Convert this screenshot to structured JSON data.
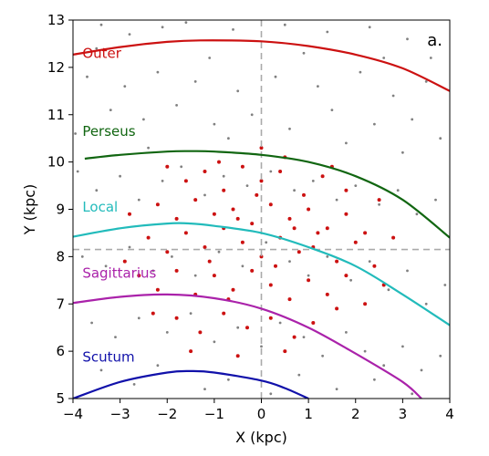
{
  "chart_data": {
    "type": "scatter",
    "title": "",
    "panel_label": "a.",
    "xlabel": "X (kpc)",
    "ylabel": "Y (kpc)",
    "xlim": [
      -4,
      4
    ],
    "ylim": [
      5,
      13
    ],
    "xticks": [
      -4,
      -3,
      -2,
      -1,
      0,
      1,
      2,
      3,
      4
    ],
    "yticks": [
      5,
      6,
      7,
      8,
      9,
      10,
      11,
      12,
      13
    ],
    "grid": false,
    "reference_lines": {
      "x": 0,
      "y": 8.15,
      "style": "dashed",
      "color": "#aaaaaa"
    },
    "arms": [
      {
        "name": "Outer",
        "color": "#cc1111",
        "label_at": [
          -3.8,
          12.2
        ],
        "points": [
          [
            -4,
            12.27
          ],
          [
            -3,
            12.43
          ],
          [
            -2,
            12.54
          ],
          [
            -1.3,
            12.57
          ],
          [
            0,
            12.55
          ],
          [
            1,
            12.45
          ],
          [
            2,
            12.27
          ],
          [
            3,
            11.98
          ],
          [
            4,
            11.5
          ]
        ]
      },
      {
        "name": "Perseus",
        "color": "#116611",
        "label_at": [
          -3.8,
          10.55
        ],
        "points": [
          [
            -3.75,
            10.07
          ],
          [
            -3,
            10.15
          ],
          [
            -2,
            10.22
          ],
          [
            -1.5,
            10.23
          ],
          [
            -1,
            10.22
          ],
          [
            0,
            10.15
          ],
          [
            1,
            10.0
          ],
          [
            2,
            9.7
          ],
          [
            3,
            9.2
          ],
          [
            4,
            8.4
          ]
        ]
      },
      {
        "name": "Local",
        "color": "#22bbbb",
        "label_at": [
          -3.8,
          8.95
        ],
        "points": [
          [
            -4,
            8.42
          ],
          [
            -3,
            8.6
          ],
          [
            -2,
            8.7
          ],
          [
            -1.5,
            8.7
          ],
          [
            -1,
            8.65
          ],
          [
            0,
            8.5
          ],
          [
            1,
            8.2
          ],
          [
            2,
            7.8
          ],
          [
            3,
            7.2
          ],
          [
            4,
            6.55
          ]
        ]
      },
      {
        "name": "Sagittarius",
        "color": "#aa22aa",
        "label_at": [
          -3.8,
          7.55
        ],
        "points": [
          [
            -4,
            7.02
          ],
          [
            -3,
            7.15
          ],
          [
            -2,
            7.2
          ],
          [
            -1,
            7.12
          ],
          [
            0,
            6.9
          ],
          [
            1,
            6.5
          ],
          [
            2,
            5.95
          ],
          [
            3,
            5.35
          ],
          [
            3.4,
            5.0
          ]
        ]
      },
      {
        "name": "Scutum",
        "color": "#1111aa",
        "label_at": [
          -3.8,
          5.78
        ],
        "points": [
          [
            -4,
            5.0
          ],
          [
            -3,
            5.35
          ],
          [
            -2,
            5.55
          ],
          [
            -1.5,
            5.58
          ],
          [
            -1,
            5.55
          ],
          [
            0,
            5.38
          ],
          [
            0.5,
            5.22
          ],
          [
            1,
            5.0
          ]
        ]
      }
    ],
    "series": [
      {
        "name": "",
        "color": "#808080",
        "marker_size": 1.4,
        "values": [
          [
            -3.4,
            12.9
          ],
          [
            -2.8,
            12.7
          ],
          [
            -2.1,
            12.85
          ],
          [
            -1.6,
            12.95
          ],
          [
            -0.6,
            12.8
          ],
          [
            0.5,
            12.9
          ],
          [
            1.4,
            12.75
          ],
          [
            2.3,
            12.85
          ],
          [
            3.1,
            12.6
          ],
          [
            3.6,
            12.2
          ],
          [
            -3.7,
            11.8
          ],
          [
            -2.9,
            11.6
          ],
          [
            -2.2,
            11.9
          ],
          [
            -1.4,
            11.7
          ],
          [
            -0.5,
            11.5
          ],
          [
            0.3,
            11.8
          ],
          [
            1.2,
            11.6
          ],
          [
            2.1,
            11.9
          ],
          [
            2.8,
            11.4
          ],
          [
            3.5,
            11.7
          ],
          [
            -3.2,
            11.1
          ],
          [
            -2.5,
            10.9
          ],
          [
            -1.8,
            11.2
          ],
          [
            -1.0,
            10.8
          ],
          [
            -0.2,
            11.0
          ],
          [
            0.6,
            10.7
          ],
          [
            1.5,
            11.1
          ],
          [
            2.4,
            10.8
          ],
          [
            3.2,
            10.9
          ],
          [
            3.8,
            10.5
          ],
          [
            -3.9,
            9.8
          ],
          [
            -3.5,
            9.4
          ],
          [
            -3.0,
            9.7
          ],
          [
            -2.6,
            9.2
          ],
          [
            -2.1,
            9.6
          ],
          [
            -1.7,
            9.9
          ],
          [
            -1.2,
            9.3
          ],
          [
            -0.8,
            9.7
          ],
          [
            -0.3,
            9.5
          ],
          [
            0.2,
            9.8
          ],
          [
            0.7,
            9.4
          ],
          [
            1.1,
            9.6
          ],
          [
            1.6,
            9.2
          ],
          [
            2.0,
            9.5
          ],
          [
            2.5,
            9.1
          ],
          [
            2.9,
            9.4
          ],
          [
            3.3,
            8.9
          ],
          [
            3.7,
            9.2
          ],
          [
            -3.8,
            8.0
          ],
          [
            -3.3,
            7.8
          ],
          [
            -2.8,
            8.2
          ],
          [
            -2.3,
            7.7
          ],
          [
            -1.9,
            8.0
          ],
          [
            -1.4,
            7.6
          ],
          [
            -0.9,
            8.1
          ],
          [
            -0.4,
            7.8
          ],
          [
            0.1,
            8.3
          ],
          [
            0.6,
            7.9
          ],
          [
            1.0,
            7.6
          ],
          [
            1.4,
            8.0
          ],
          [
            1.9,
            7.5
          ],
          [
            2.3,
            7.9
          ],
          [
            2.7,
            7.3
          ],
          [
            3.1,
            7.7
          ],
          [
            3.5,
            7.0
          ],
          [
            3.9,
            7.4
          ],
          [
            -3.6,
            6.6
          ],
          [
            -3.1,
            6.3
          ],
          [
            -2.6,
            6.7
          ],
          [
            -2.0,
            6.4
          ],
          [
            -1.5,
            6.8
          ],
          [
            -1.0,
            6.2
          ],
          [
            -0.5,
            6.5
          ],
          [
            0.0,
            6.1
          ],
          [
            0.4,
            6.6
          ],
          [
            0.9,
            6.3
          ],
          [
            1.3,
            5.9
          ],
          [
            1.8,
            6.4
          ],
          [
            2.2,
            6.0
          ],
          [
            2.6,
            5.7
          ],
          [
            3.0,
            6.1
          ],
          [
            3.4,
            5.6
          ],
          [
            3.8,
            5.9
          ],
          [
            -3.4,
            5.6
          ],
          [
            -2.7,
            5.3
          ],
          [
            -2.2,
            5.7
          ],
          [
            -1.2,
            5.2
          ],
          [
            -0.7,
            5.4
          ],
          [
            0.2,
            5.1
          ],
          [
            0.8,
            5.5
          ],
          [
            1.6,
            5.2
          ],
          [
            2.4,
            5.4
          ],
          [
            3.2,
            5.1
          ],
          [
            -3.95,
            10.6
          ],
          [
            -2.4,
            10.3
          ],
          [
            -0.7,
            10.5
          ],
          [
            1.8,
            10.4
          ],
          [
            3.0,
            10.2
          ],
          [
            -3.5,
            12.4
          ],
          [
            2.6,
            12.2
          ],
          [
            -1.1,
            12.2
          ],
          [
            0.9,
            12.3
          ]
        ]
      },
      {
        "name": "",
        "color": "#cc1111",
        "marker_size": 2.0,
        "values": [
          [
            -2.0,
            9.9
          ],
          [
            -1.6,
            9.6
          ],
          [
            -1.2,
            9.8
          ],
          [
            -0.8,
            9.4
          ],
          [
            -0.4,
            9.9
          ],
          [
            0.0,
            9.6
          ],
          [
            0.4,
            9.8
          ],
          [
            0.9,
            9.3
          ],
          [
            1.3,
            9.7
          ],
          [
            1.8,
            9.4
          ],
          [
            -2.2,
            9.1
          ],
          [
            -1.8,
            8.8
          ],
          [
            -1.4,
            9.2
          ],
          [
            -1.0,
            8.9
          ],
          [
            -0.6,
            9.0
          ],
          [
            -0.2,
            8.7
          ],
          [
            0.2,
            9.1
          ],
          [
            0.6,
            8.8
          ],
          [
            1.0,
            9.0
          ],
          [
            1.4,
            8.6
          ],
          [
            1.8,
            8.9
          ],
          [
            2.2,
            8.5
          ],
          [
            -2.4,
            8.4
          ],
          [
            -2.0,
            8.1
          ],
          [
            -1.6,
            8.5
          ],
          [
            -1.2,
            8.2
          ],
          [
            -0.8,
            8.6
          ],
          [
            -0.4,
            8.3
          ],
          [
            0.0,
            8.0
          ],
          [
            0.4,
            8.4
          ],
          [
            0.8,
            8.1
          ],
          [
            1.2,
            8.5
          ],
          [
            1.6,
            7.9
          ],
          [
            2.0,
            8.3
          ],
          [
            2.4,
            7.8
          ],
          [
            -2.6,
            7.6
          ],
          [
            -2.2,
            7.3
          ],
          [
            -1.8,
            7.7
          ],
          [
            -1.4,
            7.2
          ],
          [
            -1.0,
            7.6
          ],
          [
            -0.6,
            7.3
          ],
          [
            -0.2,
            7.7
          ],
          [
            0.2,
            7.4
          ],
          [
            0.6,
            7.1
          ],
          [
            1.0,
            7.5
          ],
          [
            1.4,
            7.2
          ],
          [
            1.8,
            7.6
          ],
          [
            2.2,
            7.0
          ],
          [
            -1.8,
            6.7
          ],
          [
            -1.3,
            6.4
          ],
          [
            -0.8,
            6.8
          ],
          [
            -0.3,
            6.5
          ],
          [
            0.2,
            6.7
          ],
          [
            0.7,
            6.3
          ],
          [
            1.1,
            6.6
          ],
          [
            -1.5,
            6.0
          ],
          [
            -0.5,
            5.9
          ],
          [
            0.5,
            6.0
          ],
          [
            0.5,
            10.1
          ],
          [
            -0.9,
            10.0
          ],
          [
            1.5,
            9.9
          ],
          [
            2.5,
            9.2
          ],
          [
            2.8,
            8.4
          ],
          [
            -2.8,
            8.9
          ],
          [
            -2.9,
            7.9
          ],
          [
            -0.1,
            9.3
          ],
          [
            0.7,
            8.6
          ],
          [
            -0.5,
            8.8
          ],
          [
            1.1,
            8.2
          ],
          [
            -1.1,
            7.9
          ],
          [
            0.3,
            7.8
          ],
          [
            -0.7,
            7.1
          ],
          [
            1.6,
            6.9
          ],
          [
            -2.3,
            6.8
          ],
          [
            2.6,
            7.4
          ],
          [
            0.0,
            10.3
          ]
        ]
      }
    ]
  }
}
